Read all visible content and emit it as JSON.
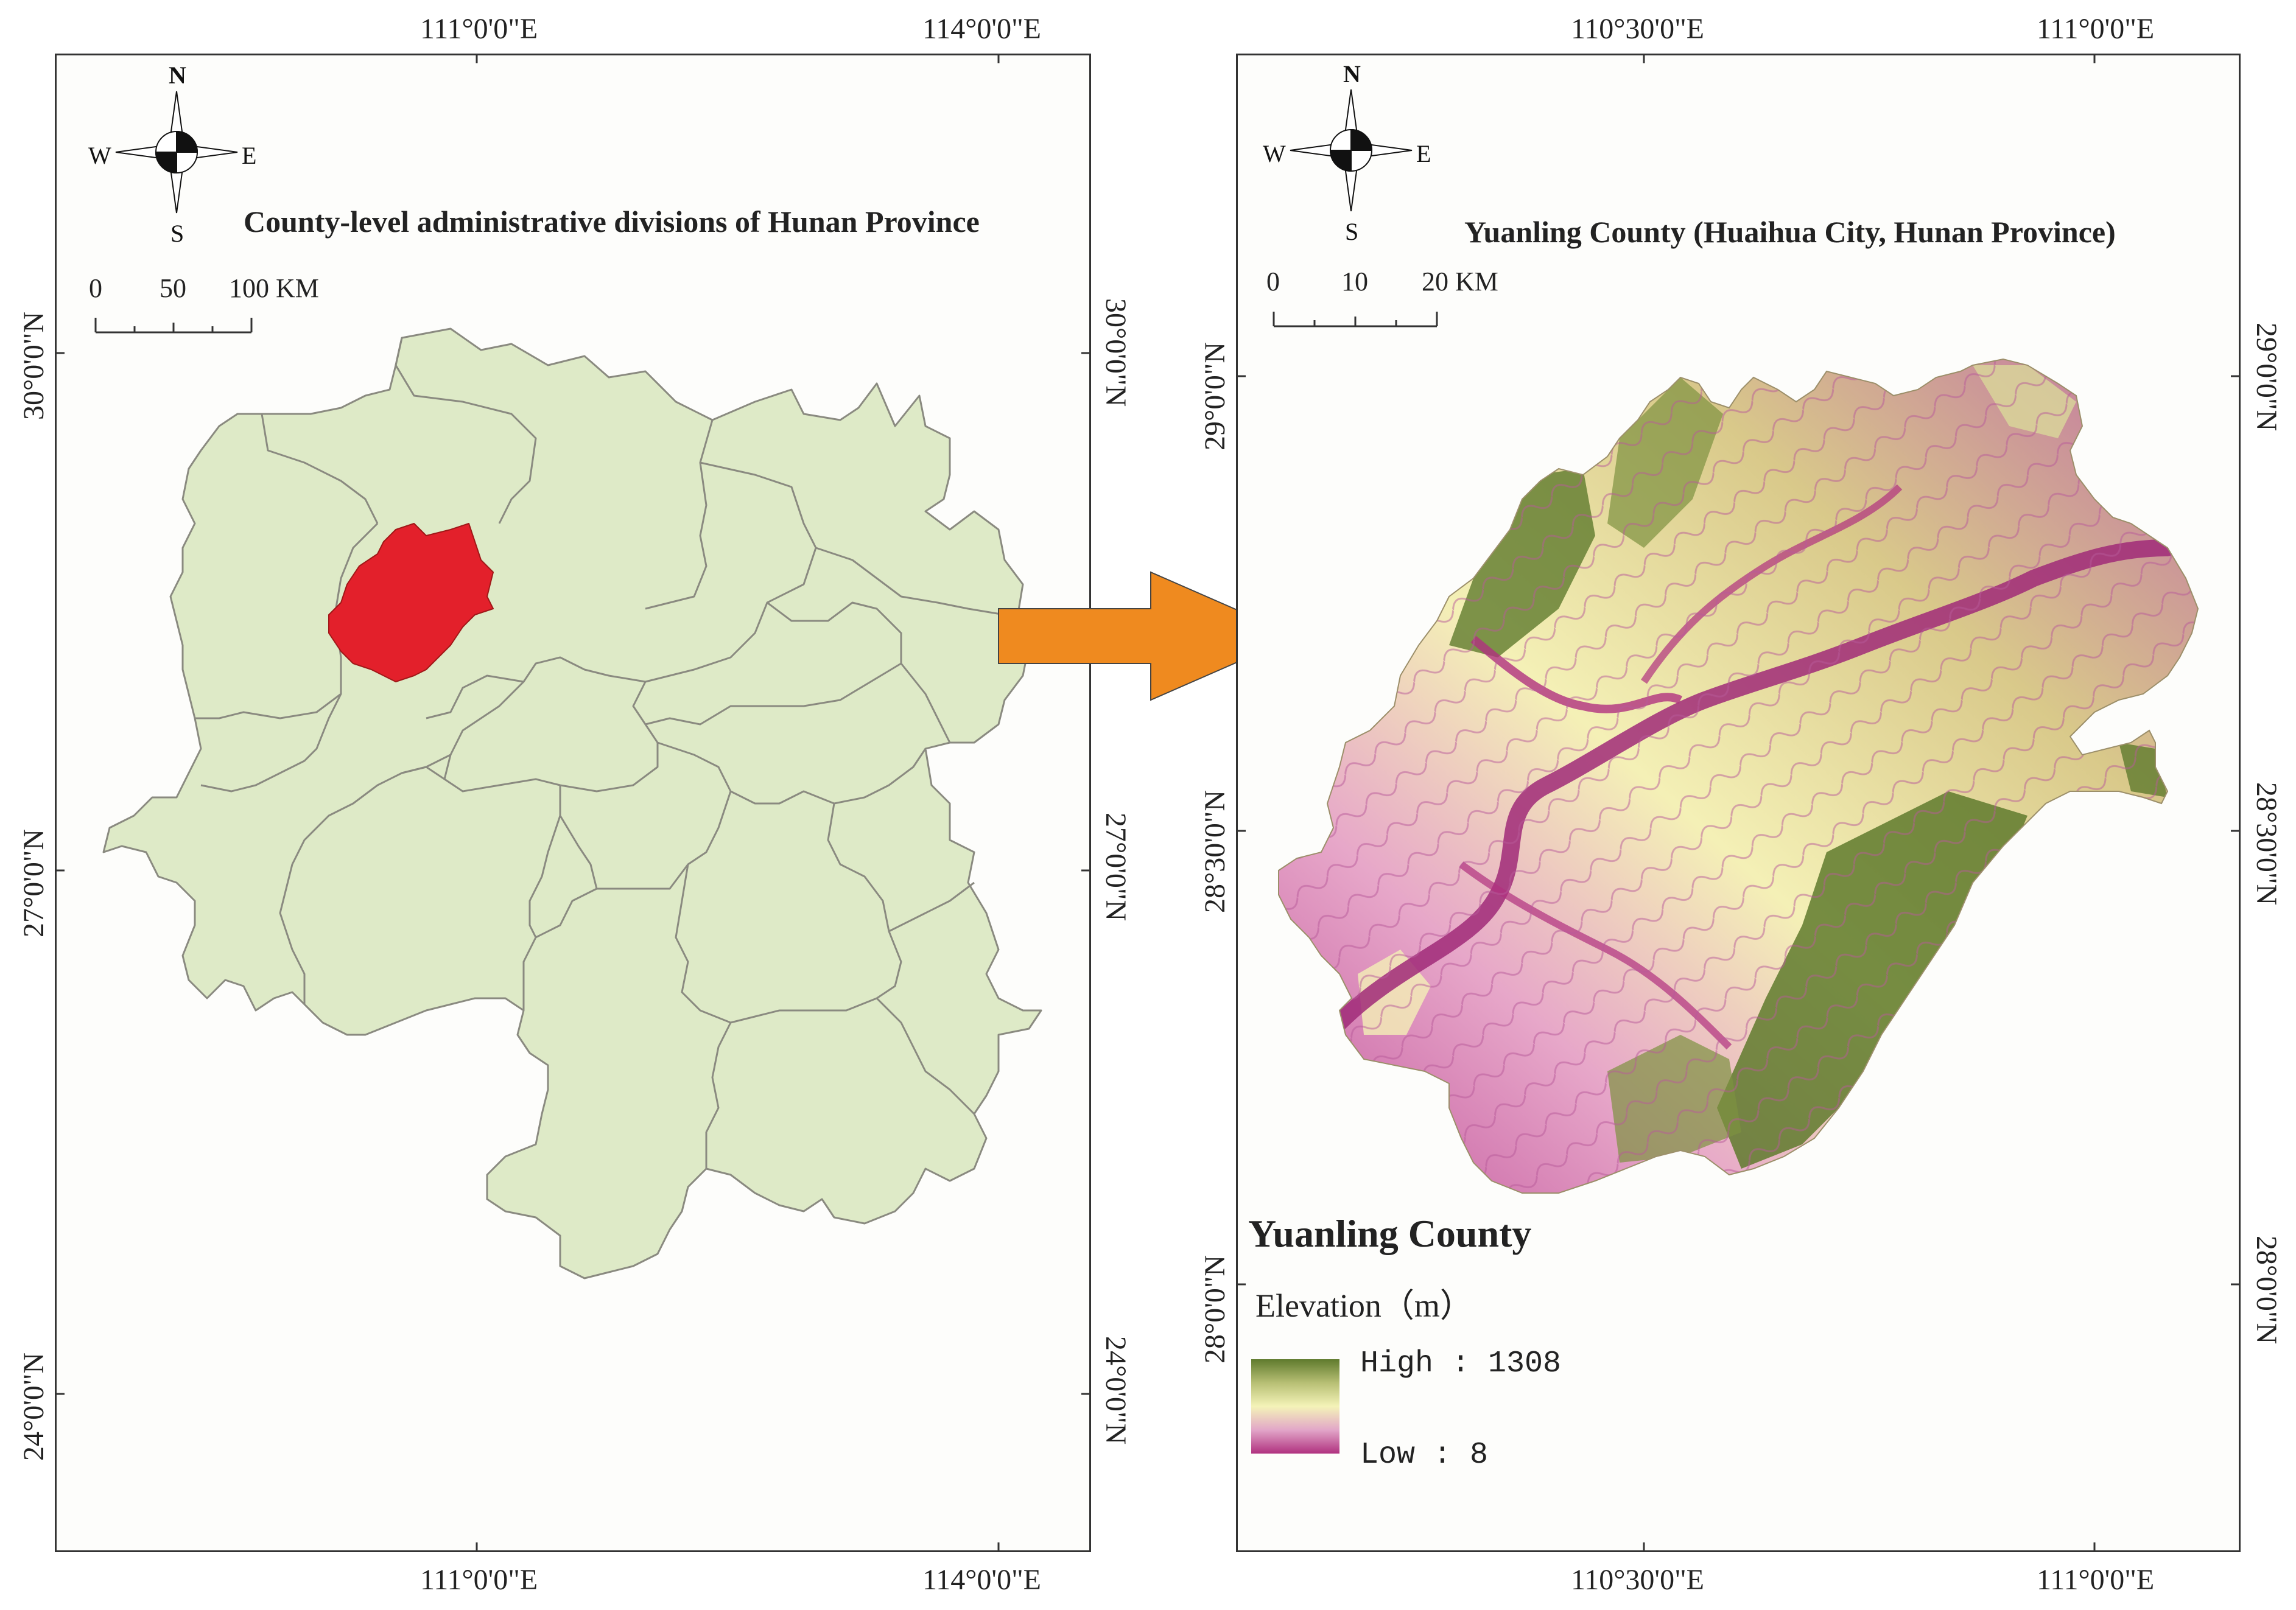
{
  "left_map": {
    "title": "County-level administrative divisions of Hunan Province",
    "top_ticks": [
      "111°0'0\"E",
      "114°0'0\"E"
    ],
    "bottom_ticks": [
      "111°0'0\"E",
      "114°0'0\"E"
    ],
    "left_ticks": [
      "30°0'0\"N",
      "27°0'0\"N",
      "24°0'0\"N"
    ],
    "right_ticks": [
      "30°0'0\"N",
      "27°0'0\"N",
      "24°0'0\"N"
    ],
    "scale": {
      "labels": [
        "0",
        "50",
        "100 KM"
      ]
    },
    "compass": {
      "n": "N",
      "s": "S",
      "e": "E",
      "w": "W"
    },
    "colors": {
      "province_fill": "#deeac7",
      "province_stroke": "#8a8a80",
      "highlight": "#e3202b"
    }
  },
  "arrow": {
    "color": "#ef8a1f"
  },
  "right_map": {
    "title": "Yuanling County (Huaihua City, Hunan Province)",
    "top_ticks": [
      "110°30'0\"E",
      "111°0'0\"E"
    ],
    "bottom_ticks": [
      "110°30'0\"E",
      "111°0'0\"E"
    ],
    "left_ticks": [
      "29°0'0\"N",
      "28°30'0\"N",
      "28°0'0\"N"
    ],
    "right_ticks": [
      "29°0'0\"N",
      "28°30'0\"N",
      "28°0'0\"N"
    ],
    "scale": {
      "labels": [
        "0",
        "10",
        "20 KM"
      ]
    },
    "compass": {
      "n": "N",
      "s": "S",
      "e": "E",
      "w": "W"
    },
    "legend": {
      "title": "Yuanling County",
      "subtitle": "Elevation（m）",
      "high": "High : 1308",
      "low": "Low : 8",
      "high_value": 1308,
      "low_value": 8,
      "colors": {
        "high": "#5f7a2d",
        "mid": "#f4f3b8",
        "low": "#b0317f"
      }
    }
  }
}
